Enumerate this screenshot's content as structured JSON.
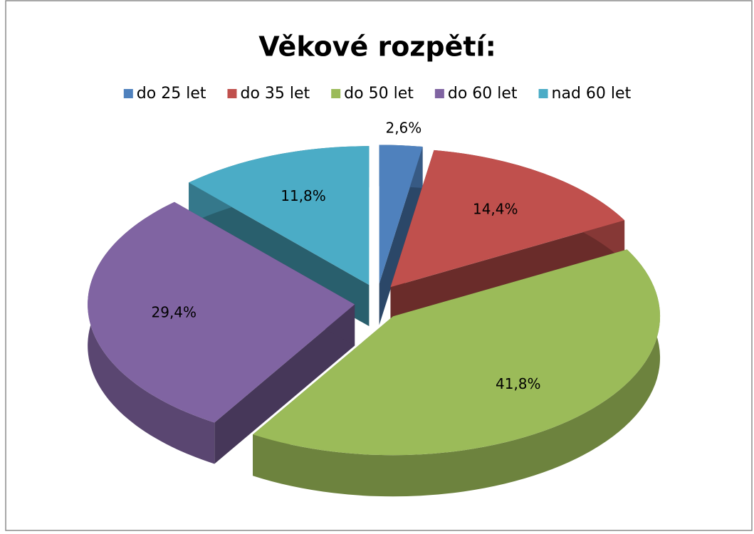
{
  "chart_data": {
    "type": "pie",
    "title": "Věkové rozpětí:",
    "categories": [
      "do 25 let",
      "do 35 let",
      "do 50 let",
      "do 60 let",
      "nad 60 let"
    ],
    "values": [
      2.6,
      14.4,
      41.8,
      29.4,
      11.8
    ],
    "value_labels": [
      "2,6%",
      "14,4%",
      "41,8%",
      "29,4%",
      "11,8%"
    ],
    "colors": [
      "#4f81bd",
      "#c0504d",
      "#9bbb59",
      "#8064a2",
      "#4bacc6"
    ],
    "legend": "top"
  }
}
